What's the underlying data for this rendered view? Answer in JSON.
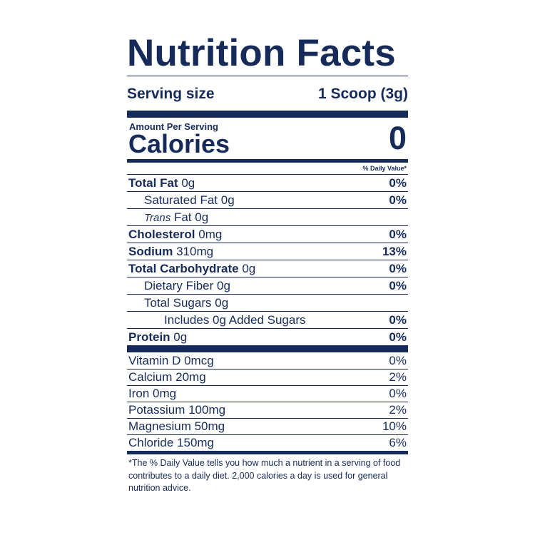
{
  "title": "Nutrition Facts",
  "serving": {
    "label": "Serving size",
    "value": "1 Scoop (3g)"
  },
  "calories": {
    "amount_per_serving": "Amount Per Serving",
    "label": "Calories",
    "value": "0"
  },
  "daily_value_header": "% Daily Value*",
  "nutrients": {
    "total_fat": {
      "name": "Total Fat",
      "amount": "0g",
      "dv": "0%"
    },
    "saturated_fat": {
      "name": "Saturated Fat",
      "amount": "0g",
      "dv": "0%"
    },
    "trans_fat": {
      "name_italic": "Trans",
      "name": "Fat",
      "amount": "0g"
    },
    "cholesterol": {
      "name": "Cholesterol",
      "amount": "0mg",
      "dv": "0%"
    },
    "sodium": {
      "name": "Sodium",
      "amount": "310mg",
      "dv": "13%"
    },
    "total_carbohydrate": {
      "name": "Total Carbohydrate",
      "amount": "0g",
      "dv": "0%"
    },
    "dietary_fiber": {
      "name": "Dietary Fiber",
      "amount": "0g",
      "dv": "0%"
    },
    "total_sugars": {
      "name": "Total Sugars",
      "amount": "0g"
    },
    "added_sugars": {
      "text": "Includes 0g Added Sugars",
      "dv": "0%"
    },
    "protein": {
      "name": "Protein",
      "amount": "0g",
      "dv": "0%"
    }
  },
  "vitamins": [
    {
      "text": "Vitamin D 0mcg",
      "dv": "0%"
    },
    {
      "text": "Calcium 20mg",
      "dv": "2%"
    },
    {
      "text": "Iron 0mg",
      "dv": "0%"
    },
    {
      "text": "Potassium 100mg",
      "dv": "2%"
    },
    {
      "text": "Magnesium 50mg",
      "dv": "10%"
    },
    {
      "text": "Chloride 150mg",
      "dv": "6%"
    }
  ],
  "footnote": "*The % Daily Value tells you how much a nutrient in a serving of food contributes to a daily diet. 2,000 calories a day is used for general nutrition advice.",
  "colors": {
    "ink": "#172b5a",
    "background": "#ffffff"
  }
}
